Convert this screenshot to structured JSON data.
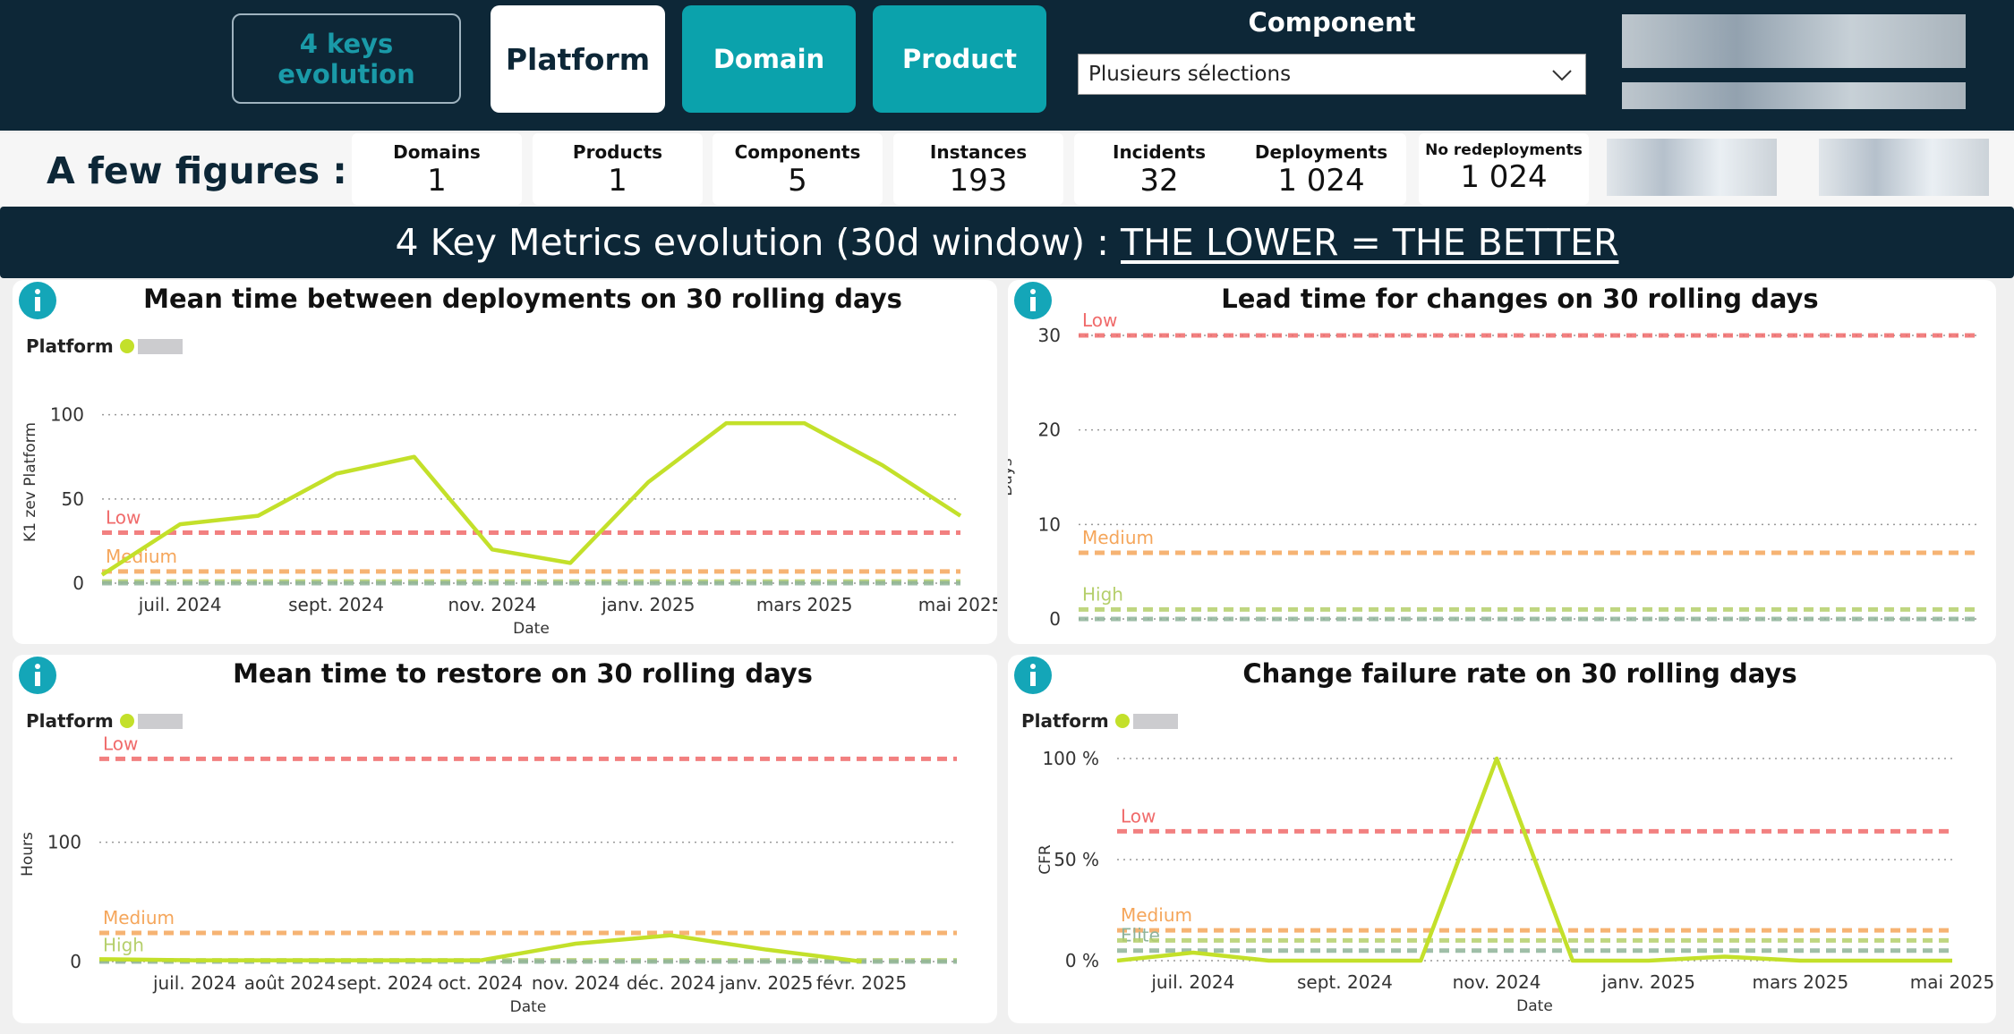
{
  "header": {
    "buttons": [
      "4 keys evolution",
      "Platform",
      "Domain",
      "Product"
    ],
    "filter_label": "Component",
    "filter_value": "Plusieurs sélections"
  },
  "figures": {
    "title": "A few figures :",
    "items": [
      {
        "label": "Domains",
        "value": "1"
      },
      {
        "label": "Products",
        "value": "1"
      },
      {
        "label": "Components",
        "value": "5"
      },
      {
        "label": "Instances",
        "value": "193"
      },
      {
        "label": "Incidents",
        "value": "32"
      },
      {
        "label": "Deployments",
        "value": "1 024"
      },
      {
        "label": "No redeployments",
        "value": "1 024"
      }
    ]
  },
  "banner": {
    "text": "4 Key Metrics evolution (30d window) : ",
    "emphasis": "THE LOWER = THE BETTER"
  },
  "chart_data": [
    {
      "type": "line",
      "title": "Mean time between deployments on 30 rolling days",
      "y_label": "K1 zev Platform",
      "x_label": "Date",
      "x": [
        "2024-06",
        "2024-07",
        "2024-08",
        "2024-09",
        "2024-10",
        "2024-11",
        "2024-12",
        "2025-01",
        "2025-02",
        "2025-03",
        "2025-04",
        "2025-05"
      ],
      "series": [
        {
          "name": "Platform",
          "color": "#c3e02a",
          "values": [
            5,
            35,
            40,
            65,
            75,
            20,
            12,
            60,
            95,
            95,
            70,
            40
          ]
        }
      ],
      "xlim": [
        "2024-06",
        "2025-05"
      ],
      "xticks": [
        {
          "value": "2024-07",
          "label": "juil. 2024"
        },
        {
          "value": "2024-09",
          "label": "sept. 2024"
        },
        {
          "value": "2024-11",
          "label": "nov. 2024"
        },
        {
          "value": "2025-01",
          "label": "janv. 2025"
        },
        {
          "value": "2025-03",
          "label": "mars 2025"
        },
        {
          "value": "2025-05",
          "label": "mai 2025"
        }
      ],
      "ylim": [
        0,
        120
      ],
      "yticks": [
        0,
        50,
        100
      ],
      "grid": true,
      "thresholds": [
        {
          "label": "Low",
          "value": 30,
          "color": "#f06b6b"
        },
        {
          "label": "Medium",
          "value": 7,
          "color": "#f5a65b"
        },
        {
          "value": 1,
          "color": "#b5cf6b"
        },
        {
          "value": 0,
          "color": "#8fb39a"
        }
      ]
    },
    {
      "type": "line",
      "title": "Lead time for changes on 30 rolling days",
      "y_label": "Days",
      "series": [],
      "ylim": [
        0,
        30
      ],
      "yticks": [
        0,
        10,
        20,
        30
      ],
      "grid": true,
      "thresholds": [
        {
          "label": "Low",
          "value": 30,
          "color": "#f06b6b"
        },
        {
          "label": "Medium",
          "value": 7,
          "color": "#f5a65b"
        },
        {
          "label": "High",
          "value": 1,
          "color": "#b5cf6b"
        },
        {
          "value": 0,
          "color": "#8fb39a"
        }
      ]
    },
    {
      "type": "line",
      "title": "Mean time to restore on 30 rolling days",
      "y_label": "Hours",
      "x_label": "Date",
      "x": [
        "2024-06",
        "2024-07",
        "2024-08",
        "2024-09",
        "2024-10",
        "2024-11",
        "2024-12",
        "2025-01",
        "2025-02"
      ],
      "series": [
        {
          "name": "Platform",
          "color": "#c3e02a",
          "values": [
            2,
            1,
            1,
            1,
            1,
            15,
            22,
            10,
            0
          ]
        }
      ],
      "xlim": [
        "2024-06",
        "2025-03"
      ],
      "xticks": [
        {
          "value": "2024-07",
          "label": "juil. 2024"
        },
        {
          "value": "2024-08",
          "label": "août 2024"
        },
        {
          "value": "2024-09",
          "label": "sept. 2024"
        },
        {
          "value": "2024-10",
          "label": "oct. 2024"
        },
        {
          "value": "2024-11",
          "label": "nov. 2024"
        },
        {
          "value": "2024-12",
          "label": "déc. 2024"
        },
        {
          "value": "2025-01",
          "label": "janv. 2025"
        },
        {
          "value": "2025-02",
          "label": "févr. 2025"
        }
      ],
      "ylim": [
        0,
        180
      ],
      "yticks": [
        0,
        100
      ],
      "grid": true,
      "thresholds": [
        {
          "label": "Low",
          "value": 170,
          "color": "#f06b6b"
        },
        {
          "label": "Medium",
          "value": 24,
          "color": "#f5a65b"
        },
        {
          "label": "High",
          "value": 1,
          "color": "#b5cf6b"
        },
        {
          "value": 0,
          "color": "#8fb39a"
        }
      ]
    },
    {
      "type": "line",
      "title": "Change failure rate on 30 rolling days",
      "y_label": "CFR",
      "x_label": "Date",
      "x": [
        "2024-06",
        "2024-07",
        "2024-08",
        "2024-09",
        "2024-10",
        "2024-11",
        "2024-12",
        "2025-01",
        "2025-02",
        "2025-03",
        "2025-04",
        "2025-05"
      ],
      "series": [
        {
          "name": "Platform",
          "color": "#c3e02a",
          "values": [
            0,
            4,
            0,
            0,
            0,
            100,
            0,
            0,
            2,
            0,
            0,
            0
          ]
        }
      ],
      "xlim": [
        "2024-06",
        "2025-05"
      ],
      "xticks": [
        {
          "value": "2024-07",
          "label": "juil. 2024"
        },
        {
          "value": "2024-09",
          "label": "sept. 2024"
        },
        {
          "value": "2024-11",
          "label": "nov. 2024"
        },
        {
          "value": "2025-01",
          "label": "janv. 2025"
        },
        {
          "value": "2025-03",
          "label": "mars 2025"
        },
        {
          "value": "2025-05",
          "label": "mai 2025"
        }
      ],
      "ylim": [
        0,
        100
      ],
      "yticks": [
        {
          "value": 0,
          "label": "0 %"
        },
        {
          "value": 50,
          "label": "50 %"
        },
        {
          "value": 100,
          "label": "100 %"
        }
      ],
      "grid": true,
      "thresholds": [
        {
          "label": "Low",
          "value": 64,
          "color": "#f06b6b"
        },
        {
          "label": "Medium",
          "value": 15,
          "color": "#f5a65b"
        },
        {
          "label": "Elite",
          "value": 5,
          "color": "#8fb39a"
        },
        {
          "value": 10,
          "color": "#b5cf6b"
        }
      ]
    }
  ]
}
